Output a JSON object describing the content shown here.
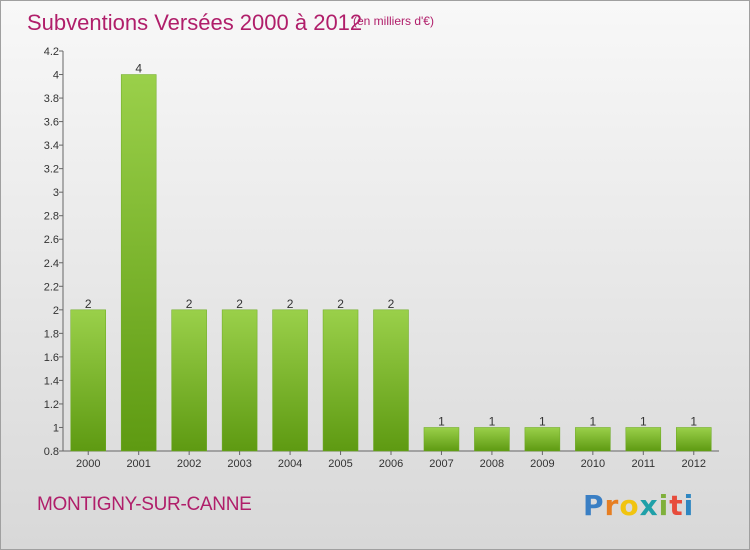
{
  "title": "Subventions Versées 2000 à 2012",
  "subtitle": "(en milliers d'€)",
  "commune": "MONTIGNY-SUR-CANNE",
  "brand": {
    "letters": [
      "P",
      "r",
      "o",
      "x",
      "i",
      "t",
      "i"
    ],
    "colors": [
      "#3a7fc4",
      "#e67e22",
      "#f1c40f",
      "#1fa0a8",
      "#7fb03b",
      "#e74c3c",
      "#2e86c1"
    ]
  },
  "colors": {
    "bar_light": "#9ad04a",
    "bar_dark": "#5e9a12",
    "accent": "#b01e6a"
  },
  "chart_data": {
    "type": "bar",
    "categories": [
      "2000",
      "2001",
      "2002",
      "2003",
      "2004",
      "2005",
      "2006",
      "2007",
      "2008",
      "2009",
      "2010",
      "2011",
      "2012"
    ],
    "values": [
      2,
      4,
      2,
      2,
      2,
      2,
      2,
      1,
      1,
      1,
      1,
      1,
      1
    ],
    "data_labels": [
      "2",
      "4",
      "2",
      "2",
      "2",
      "2",
      "2",
      "1",
      "1",
      "1",
      "1",
      "1",
      "1"
    ],
    "title": "Subventions Versées 2000 à 2012",
    "subtitle": "(en milliers d'€)",
    "xlabel": "",
    "ylabel": "",
    "ylim": [
      0.8,
      4.2
    ],
    "yticks": [
      0.8,
      1,
      1.2,
      1.4,
      1.6,
      1.8,
      2,
      2.2,
      2.4,
      2.6,
      2.8,
      3,
      3.2,
      3.4,
      3.6,
      3.8,
      4,
      4.2
    ],
    "ytick_labels": [
      "0.8",
      "1",
      "1.2",
      "1.4",
      "1.6",
      "1.8",
      "2",
      "2.2",
      "2.4",
      "2.6",
      "2.8",
      "3",
      "3.2",
      "3.4",
      "3.6",
      "3.8",
      "4",
      "4.2"
    ],
    "grid": false,
    "legend": "none"
  }
}
